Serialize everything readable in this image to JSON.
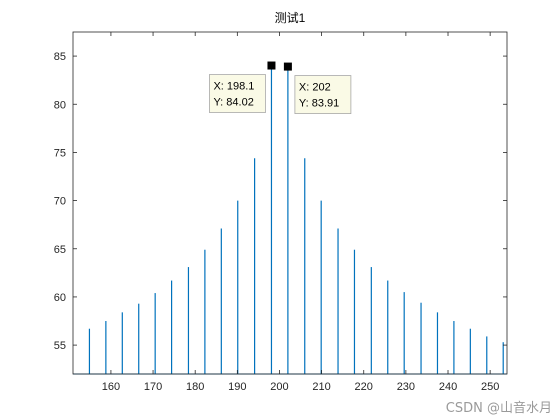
{
  "chart_data": {
    "type": "line",
    "title": "测试1",
    "xlabel": "",
    "ylabel": "",
    "xlim": [
      151,
      254
    ],
    "ylim": [
      52,
      87.5
    ],
    "xticks": [
      160,
      170,
      180,
      190,
      200,
      210,
      220,
      230,
      240,
      250
    ],
    "yticks": [
      55,
      60,
      65,
      70,
      75,
      80,
      85
    ],
    "baseline": 52,
    "color": "#0072BD",
    "peaks": [
      {
        "x": 154.9,
        "y": 56.7
      },
      {
        "x": 158.8,
        "y": 57.5
      },
      {
        "x": 162.7,
        "y": 58.4
      },
      {
        "x": 166.6,
        "y": 59.3
      },
      {
        "x": 170.5,
        "y": 60.4
      },
      {
        "x": 174.4,
        "y": 61.7
      },
      {
        "x": 178.4,
        "y": 63.1
      },
      {
        "x": 182.3,
        "y": 64.9
      },
      {
        "x": 186.2,
        "y": 67.1
      },
      {
        "x": 190.1,
        "y": 70.0
      },
      {
        "x": 194.1,
        "y": 74.4
      },
      {
        "x": 198.1,
        "y": 84.02
      },
      {
        "x": 202.0,
        "y": 83.91
      },
      {
        "x": 206.0,
        "y": 74.4
      },
      {
        "x": 209.9,
        "y": 70.0
      },
      {
        "x": 213.9,
        "y": 67.1
      },
      {
        "x": 217.8,
        "y": 64.9
      },
      {
        "x": 221.8,
        "y": 63.1
      },
      {
        "x": 225.7,
        "y": 61.7
      },
      {
        "x": 229.6,
        "y": 60.5
      },
      {
        "x": 233.6,
        "y": 59.4
      },
      {
        "x": 237.5,
        "y": 58.4
      },
      {
        "x": 241.4,
        "y": 57.5
      },
      {
        "x": 245.3,
        "y": 56.7
      },
      {
        "x": 249.2,
        "y": 55.9
      },
      {
        "x": 253.1,
        "y": 55.3
      }
    ],
    "datatips": [
      {
        "x": 198.1,
        "y": 84.02,
        "x_text": "X: 198.1",
        "y_text": "Y: 84.02",
        "side": "left"
      },
      {
        "x": 202.0,
        "y": 83.91,
        "x_text": "X: 202",
        "y_text": "Y: 83.91",
        "side": "right"
      }
    ]
  },
  "watermark": "CSDN @山音水月"
}
